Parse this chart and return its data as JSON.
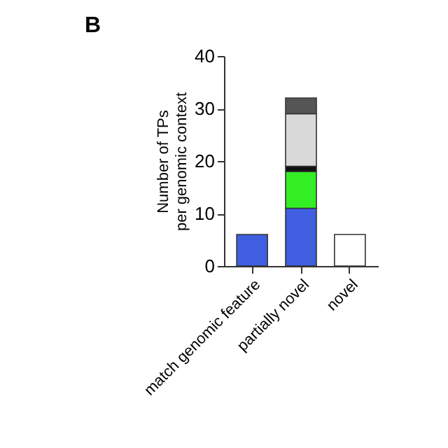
{
  "chart_data": {
    "type": "bar",
    "title": "B",
    "ylabel": "Number of TPs\nper genomic context",
    "categories": [
      "match genomic feature",
      "partially novel",
      "novel"
    ],
    "stacked": true,
    "ylim": [
      0,
      40
    ],
    "yticks": [
      0,
      10,
      20,
      30,
      40
    ],
    "grid": false,
    "legend": false,
    "series": [
      {
        "color": "#3f5fe0",
        "values": [
          6,
          11,
          null
        ]
      },
      {
        "color": "#33ee22",
        "values": [
          null,
          7,
          null
        ]
      },
      {
        "color": "#111111",
        "values": [
          null,
          1,
          null
        ]
      },
      {
        "color": "#d9d9d9",
        "values": [
          null,
          10,
          null
        ]
      },
      {
        "color": "#555555",
        "values": [
          null,
          3,
          null
        ]
      },
      {
        "color": "#ffffff",
        "values": [
          null,
          null,
          6
        ]
      }
    ]
  }
}
